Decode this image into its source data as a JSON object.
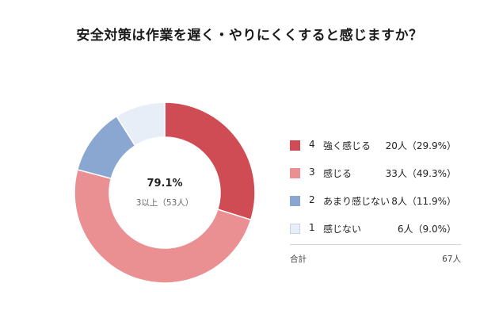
{
  "title": "安全対策は作業を遅く・やりにくくすると感じますか？",
  "center": {
    "percent": "79.1%",
    "subtitle": "3以上（53人）"
  },
  "chart_data": {
    "type": "pie",
    "title": "安全対策は作業を遅く・やりにくくすると感じますか？",
    "slices": [
      {
        "value_label": "4",
        "label": "強く感じる",
        "count": 20,
        "percent": 29.9,
        "count_text": "20人（29.9%）",
        "color": "#d04c55"
      },
      {
        "value_label": "3",
        "label": "感じる",
        "count": 33,
        "percent": 49.3,
        "count_text": "33人（49.3%）",
        "color": "#ea8f92"
      },
      {
        "value_label": "2",
        "label": "あまり感じない",
        "count": 8,
        "percent": 11.9,
        "count_text": "8人（11.9%）",
        "color": "#8aa7d2"
      },
      {
        "value_label": "1",
        "label": "感じない",
        "count": 6,
        "percent": 9.0,
        "count_text": "6人（9.0%）",
        "color": "#e8eef7"
      }
    ],
    "total_label": "合計",
    "total_value": "67人"
  }
}
